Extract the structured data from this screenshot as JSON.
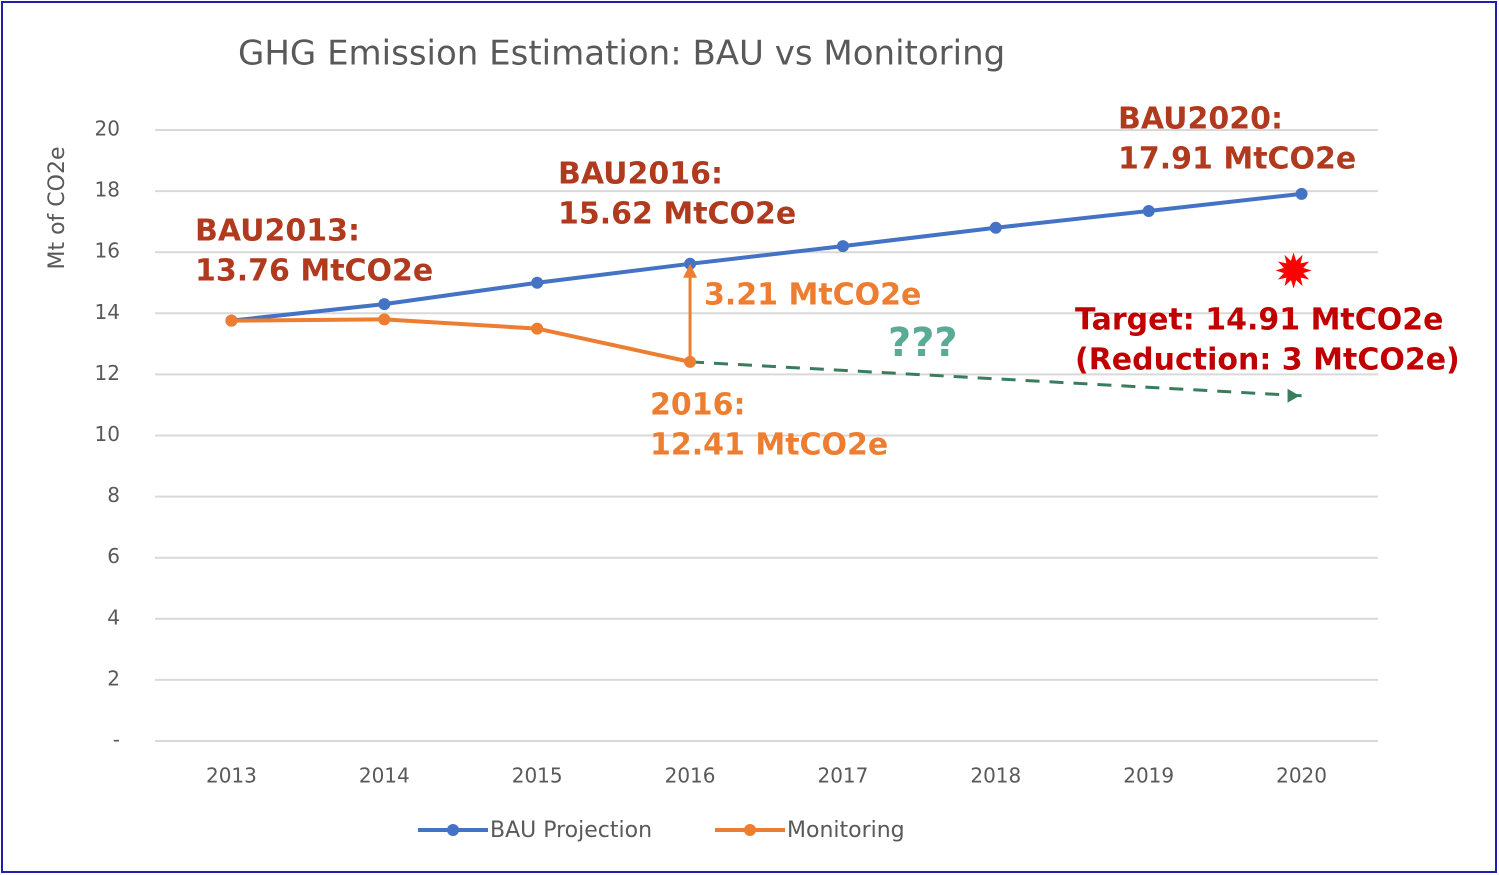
{
  "chart_data": {
    "type": "line",
    "title": "GHG Emission  Estimation: BAU vs Monitoring",
    "y_label": "Mt of CO2e",
    "categories": [
      "2013",
      "2014",
      "2015",
      "2016",
      "2017",
      "2018",
      "2019",
      "2020"
    ],
    "series": [
      {
        "name": "BAU Projection",
        "color": "#4472c4",
        "values": [
          13.76,
          14.3,
          15.0,
          15.62,
          16.2,
          16.8,
          17.35,
          17.91
        ]
      },
      {
        "name": "Monitoring",
        "color": "#ed7d31",
        "values": [
          13.76,
          13.8,
          13.5,
          12.41,
          null,
          null,
          null,
          null
        ]
      }
    ],
    "trend_line": {
      "color": "#3a7d5c",
      "values": [
        null,
        null,
        null,
        12.41,
        null,
        null,
        null,
        11.3
      ]
    },
    "target": {
      "category": "2020",
      "value": 14.91,
      "color": "#ff0000"
    },
    "ylim": [
      0,
      20
    ],
    "yticks": [
      {
        "value": 0,
        "label": "-"
      },
      2,
      4,
      6,
      8,
      10,
      12,
      14,
      16,
      18,
      20
    ],
    "grid": true,
    "legend": "bottom",
    "annotations": [
      "BAU2013:",
      "13.76 MtCO2e",
      "BAU2016:",
      "15.62 MtCO2e",
      "BAU2020:",
      "17.91 MtCO2e",
      "3.21 MtCO2e",
      "???",
      "2016:",
      "12.41 MtCO2e",
      "Target: 14.91 MtCO2e",
      "(Reduction: 3 MtCO2e)"
    ]
  }
}
